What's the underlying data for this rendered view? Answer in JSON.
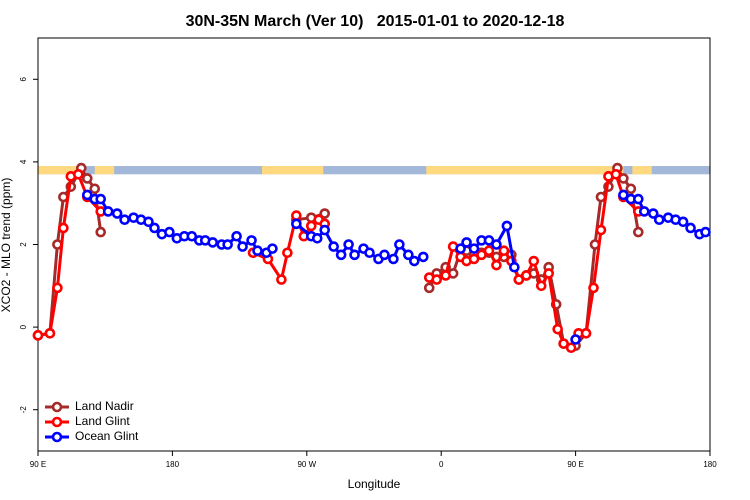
{
  "chart_data": {
    "type": "line",
    "title": "30N-35N March (Ver 10)   2015-01-01 to 2020-12-18",
    "x_label": "Longitude",
    "y_label": "XCO2 - MLO trend (ppm)",
    "xlim": [
      90,
      540
    ],
    "xticks": [
      {
        "value": 90,
        "label": "90 E"
      },
      {
        "value": 180,
        "label": "180"
      },
      {
        "value": 270,
        "label": "90 W"
      },
      {
        "value": 360,
        "label": "0"
      },
      {
        "value": 450,
        "label": "90 E"
      },
      {
        "value": 540,
        "label": "180"
      }
    ],
    "ylim": [
      -3,
      7
    ],
    "yticks": [
      -2,
      0,
      2,
      4,
      6
    ],
    "legend": "bottom-left",
    "land_mask": {
      "ylim": [
        3.7,
        3.9
      ],
      "land_color": "#ffd97f",
      "ocean_color": "#a3b8d9",
      "land_ranges": [
        [
          90,
          122
        ],
        [
          128,
          141
        ],
        [
          240,
          281
        ],
        [
          350,
          482
        ],
        [
          488,
          501
        ]
      ]
    },
    "series": [
      {
        "name": "Land Nadir",
        "color": "#a52a2a",
        "x": [
          90,
          98,
          103,
          107,
          112,
          119,
          123,
          128,
          132,
          null,
          263,
          273,
          282,
          null,
          352,
          357,
          363,
          368,
          373,
          377,
          382,
          387,
          392,
          397,
          402,
          407,
          412,
          417,
          422,
          427,
          432,
          437,
          442,
          450,
          457,
          463,
          467,
          472,
          478,
          482,
          487,
          492
        ],
        "values": [
          -0.2,
          -0.15,
          2.0,
          3.15,
          3.4,
          3.85,
          3.6,
          3.35,
          2.3,
          null,
          2.6,
          2.65,
          2.75,
          null,
          0.95,
          1.3,
          1.45,
          1.3,
          1.85,
          1.85,
          1.75,
          1.8,
          1.8,
          1.7,
          1.7,
          1.75,
          1.15,
          1.25,
          1.3,
          1.15,
          1.45,
          0.55,
          -0.4,
          -0.45,
          -0.15,
          2.0,
          3.15,
          3.4,
          3.85,
          3.6,
          3.35,
          2.3
        ]
      },
      {
        "name": "Land Glint",
        "color": "#ff0000",
        "x": [
          90,
          98,
          103,
          107,
          112,
          117,
          123,
          132,
          null,
          234,
          244,
          253,
          257,
          263,
          268,
          273,
          278,
          282,
          null,
          352,
          357,
          363,
          368,
          373,
          377,
          382,
          387,
          392,
          397,
          402,
          407,
          412,
          417,
          422,
          427,
          432,
          438,
          442,
          447,
          452,
          457,
          462,
          467,
          472,
          477,
          482,
          492
        ],
        "values": [
          -0.2,
          -0.15,
          0.95,
          2.4,
          3.65,
          3.7,
          3.15,
          2.8,
          null,
          1.8,
          1.65,
          1.15,
          1.8,
          2.7,
          2.2,
          2.45,
          2.6,
          2.5,
          null,
          1.2,
          1.15,
          1.25,
          1.95,
          1.7,
          1.6,
          1.65,
          1.75,
          1.85,
          1.5,
          1.85,
          1.6,
          1.15,
          1.25,
          1.6,
          1.0,
          1.3,
          -0.05,
          -0.4,
          -0.5,
          -0.15,
          -0.15,
          0.95,
          2.35,
          3.65,
          3.7,
          3.15,
          2.8
        ]
      },
      {
        "name": "Ocean Glint",
        "color": "#0000ff",
        "x": [
          123,
          128,
          132,
          137,
          143,
          148,
          154,
          159,
          164,
          168,
          173,
          178,
          183,
          188,
          193,
          198,
          202,
          207,
          213,
          217,
          223,
          227,
          233,
          237,
          243,
          247,
          null,
          263,
          273,
          277,
          282,
          288,
          293,
          298,
          302,
          308,
          312,
          318,
          322,
          328,
          332,
          338,
          342,
          348,
          null,
          373,
          377,
          382,
          387,
          392,
          397,
          404,
          409,
          null,
          450,
          null,
          482,
          487,
          492,
          496,
          502,
          506,
          512,
          517,
          522,
          527,
          533,
          537
        ],
        "values": [
          3.2,
          3.1,
          3.1,
          2.8,
          2.75,
          2.6,
          2.65,
          2.6,
          2.55,
          2.4,
          2.25,
          2.3,
          2.15,
          2.2,
          2.2,
          2.1,
          2.1,
          2.05,
          2.0,
          2.0,
          2.2,
          1.95,
          2.1,
          1.85,
          1.8,
          1.9,
          null,
          2.5,
          2.2,
          2.15,
          2.35,
          1.95,
          1.75,
          2.0,
          1.75,
          1.9,
          1.8,
          1.65,
          1.75,
          1.65,
          2.0,
          1.75,
          1.6,
          1.7,
          null,
          1.9,
          2.05,
          1.9,
          2.1,
          2.1,
          2.0,
          2.45,
          1.45,
          null,
          -0.3,
          null,
          3.2,
          3.1,
          3.1,
          2.8,
          2.75,
          2.6,
          2.65,
          2.6,
          2.55,
          2.4,
          2.25,
          2.3
        ]
      }
    ]
  }
}
